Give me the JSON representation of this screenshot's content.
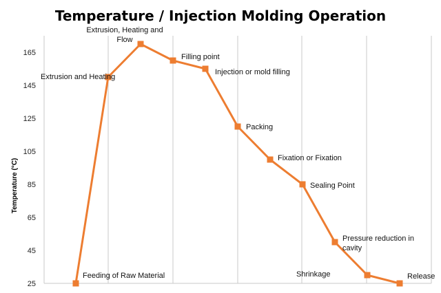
{
  "chart_data": {
    "type": "line",
    "title": "Temperature / Injection Molding Operation",
    "xlabel": "",
    "ylabel": "Temperature (°C)",
    "ylim": [
      25,
      175
    ],
    "yticks": [
      25,
      45,
      65,
      85,
      105,
      125,
      145,
      165
    ],
    "grid": "vertical",
    "series": [
      {
        "name": "Temperature",
        "color": "#ED7D31",
        "values": [
          25,
          150,
          170,
          160,
          155,
          120,
          100,
          85,
          50,
          30,
          25
        ]
      }
    ],
    "annotations": [
      {
        "lines": [
          "Feeding of Raw Material"
        ]
      },
      {
        "lines": [
          "Extrusion and Heating"
        ]
      },
      {
        "lines": [
          "Extrusion, Heating and",
          "Flow"
        ]
      },
      {
        "lines": [
          "Filling point"
        ]
      },
      {
        "lines": [
          "Injection or mold filling"
        ]
      },
      {
        "lines": [
          "Packing"
        ]
      },
      {
        "lines": [
          "Fixation or Fixation"
        ]
      },
      {
        "lines": [
          "Sealing Point"
        ]
      },
      {
        "lines": [
          "Pressure reduction in",
          "cavity"
        ]
      },
      {
        "lines": [
          "Shrinkage"
        ]
      },
      {
        "lines": [
          "Release"
        ]
      }
    ]
  }
}
